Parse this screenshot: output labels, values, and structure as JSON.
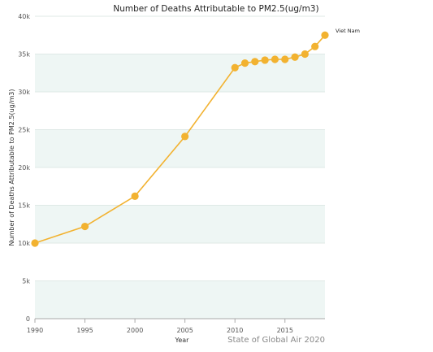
{
  "chart_data": {
    "type": "line",
    "title": "Number of Deaths Attributable to PM2.5(ug/m3)",
    "xlabel": "Year",
    "ylabel": "Number of Deaths Attributable to PM2.5(ug/m3)",
    "xlim": [
      1990,
      2019
    ],
    "ylim": [
      0,
      40000
    ],
    "x_ticks": [
      "1990",
      "1995",
      "2000",
      "2005",
      "2010",
      "2015"
    ],
    "x_tick_values": [
      1990,
      1995,
      2000,
      2005,
      2010,
      2015
    ],
    "y_ticks": [
      "0",
      "5k",
      "10k",
      "15k",
      "20k",
      "25k",
      "30k",
      "35k",
      "40k"
    ],
    "y_tick_values": [
      0,
      5000,
      10000,
      15000,
      20000,
      25000,
      30000,
      35000,
      40000
    ],
    "grid": true,
    "legend_position": "top-right",
    "series": [
      {
        "name": "Viet Nam",
        "color": "#f2b230",
        "x": [
          1990,
          1995,
          2000,
          2005,
          2010,
          2011,
          2012,
          2013,
          2014,
          2015,
          2016,
          2017,
          2018,
          2019
        ],
        "values": [
          10000,
          12200,
          16200,
          24100,
          33200,
          33800,
          34000,
          34200,
          34300,
          34300,
          34600,
          35000,
          36000,
          37500
        ]
      }
    ]
  },
  "credit": "State of Global Air 2020",
  "colors": {
    "band": "#eef6f4",
    "grid": "#dfe9e6",
    "axis": "#aaaaaa"
  }
}
